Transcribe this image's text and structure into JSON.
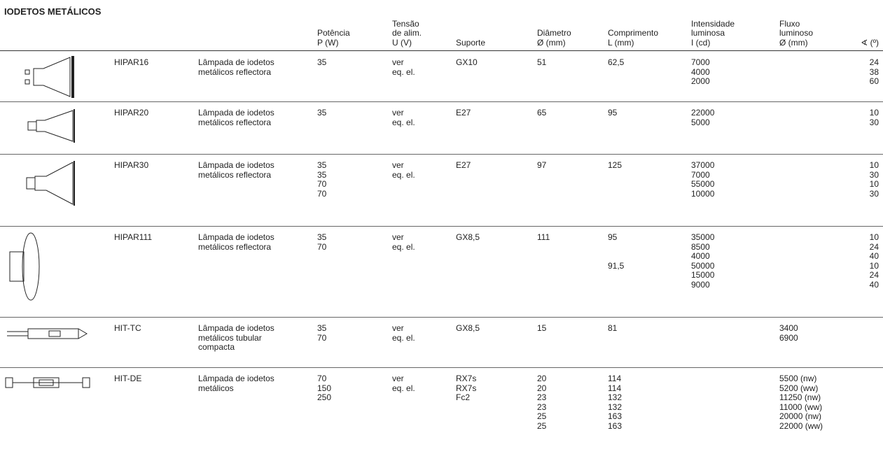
{
  "title": "IODETOS METÁLICOS",
  "headers": [
    [
      "Potência",
      "P (W)"
    ],
    [
      "Tensão",
      "de alim.",
      "U (V)"
    ],
    [
      "Suporte"
    ],
    [
      "Diâmetro",
      "Ø (mm)"
    ],
    [
      "Comprimento",
      "L (mm)"
    ],
    [
      "Intensidade",
      "luminosa",
      "I (cd)"
    ],
    [
      "Fluxo",
      "luminoso",
      "Ø (mm)"
    ],
    [
      "∢ (º)"
    ]
  ],
  "rows": [
    {
      "name": "HIPAR16",
      "description": [
        "Lâmpada de iodetos",
        "metálicos reflectora"
      ],
      "power": [
        "35"
      ],
      "voltage": [
        "ver",
        "eq. el."
      ],
      "base": [
        "GX10"
      ],
      "diameter": [
        "51"
      ],
      "length": [
        "62,5"
      ],
      "intensity": [
        "7000",
        "4000",
        "2000"
      ],
      "angle": [
        "24",
        "38",
        "60"
      ]
    },
    {
      "name": "HIPAR20",
      "description": [
        "Lâmpada de iodetos",
        "metálicos reflectora"
      ],
      "power": [
        "35"
      ],
      "voltage": [
        "ver",
        "eq. el."
      ],
      "base": [
        "E27"
      ],
      "diameter": [
        "65"
      ],
      "length": [
        "95"
      ],
      "intensity": [
        "22000",
        "5000"
      ],
      "angle": [
        "10",
        "30"
      ]
    },
    {
      "name": "HIPAR30",
      "description": [
        "Lâmpada de iodetos",
        "metálicos reflectora"
      ],
      "power": [
        "35",
        "35",
        "70",
        "70"
      ],
      "voltage": [
        "ver",
        "eq. el."
      ],
      "base": [
        "E27"
      ],
      "diameter": [
        "97"
      ],
      "length": [
        "125"
      ],
      "intensity": [
        "37000",
        "7000",
        "55000",
        "10000"
      ],
      "angle": [
        "10",
        "30",
        "10",
        "30"
      ]
    },
    {
      "name": "HIPAR111",
      "description": [
        "Lâmpada de iodetos",
        "metálicos reflectora"
      ],
      "power": [
        "35",
        "70"
      ],
      "voltage": [
        "ver",
        "eq. el."
      ],
      "base": [
        "GX8,5"
      ],
      "diameter": [
        "111"
      ],
      "length": [
        "95",
        null,
        null,
        "91,5"
      ],
      "intensity": [
        "35000",
        "8500",
        "4000",
        "50000",
        "15000",
        "9000"
      ],
      "angle": [
        "10",
        "24",
        "40",
        "10",
        "24",
        "40"
      ]
    },
    {
      "name": "HIT-TC",
      "description": [
        "Lâmpada de iodetos",
        "metálicos tubular",
        "compacta"
      ],
      "power": [
        "35",
        "70"
      ],
      "voltage": [
        "ver",
        "eq. el."
      ],
      "base": [
        "GX8,5"
      ],
      "diameter": [
        "15"
      ],
      "length": [
        "81"
      ],
      "flux": [
        "3400",
        "6900"
      ]
    },
    {
      "name": "HIT-DE",
      "description": [
        "Lâmpada de iodetos",
        "metálicos"
      ],
      "power": [
        "70",
        "150",
        "250"
      ],
      "voltage": [
        "ver",
        "eq. el."
      ],
      "base": [
        "RX7s",
        "RX7s",
        "Fc2"
      ],
      "diameter": [
        "20",
        "20",
        "23",
        "23",
        "25",
        "25"
      ],
      "length": [
        "114",
        "114",
        "132",
        "132",
        "163",
        "163"
      ],
      "flux": [
        "5500 (nw)",
        "5200 (ww)",
        "11250 (nw)",
        "11000 (ww)",
        "20000 (nw)",
        "22000 (ww)"
      ]
    }
  ]
}
